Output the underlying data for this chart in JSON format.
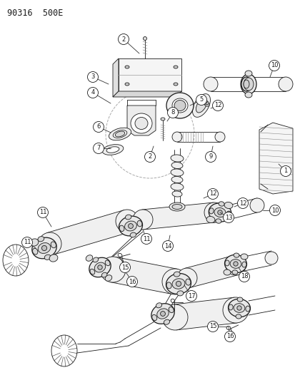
{
  "title": "90316  500E",
  "bg_color": "#ffffff",
  "line_color": "#1a1a1a",
  "label_color": "#111111",
  "fig_width": 4.14,
  "fig_height": 5.33,
  "dpi": 100,
  "line_widths": {
    "thin": 0.6,
    "med": 0.9,
    "thick": 1.4
  }
}
